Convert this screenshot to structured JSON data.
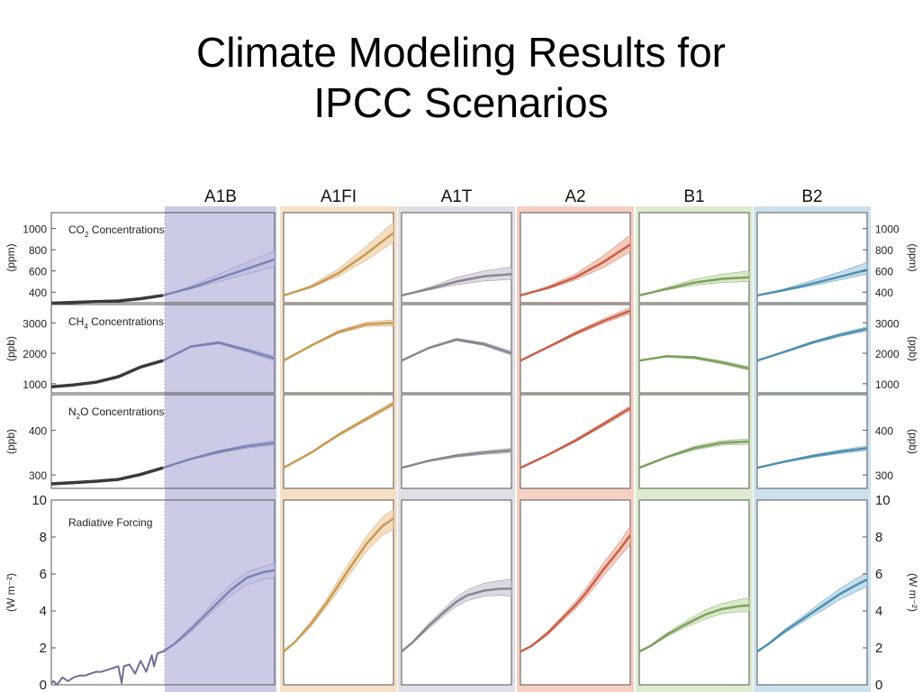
{
  "title_lines": [
    "Climate Modeling Results for",
    "IPCC Scenarios"
  ],
  "colors": {
    "historical": "#3a3a3a",
    "A1B": "#7f80b5",
    "A1FI": "#c89a55",
    "A1T": "#8c8490",
    "A2": "#c8604a",
    "B1": "#7ea060",
    "B2": "#4f90b0",
    "A1B_band": "#c2c2e2",
    "A1FI_band": "#f4dcbe",
    "A1T_band": "#dcd8e2",
    "A2_band": "#f5c8b8",
    "B1_band": "#d8e8c8",
    "B2_band": "#c4dcea"
  },
  "chart_data": {
    "type": "line",
    "scenarios": [
      "A1B",
      "A1FI",
      "A1T",
      "A2",
      "B1",
      "B2"
    ],
    "x_range": [
      1900,
      2100
    ],
    "panels": [
      {
        "key": "co2",
        "label_main": "CO",
        "label_sub": "2",
        "label_rest": " Concentrations",
        "ylabel": "(ppm)",
        "ylim": [
          300,
          1150
        ],
        "yticks": [
          "400",
          "600",
          "800",
          "1000"
        ],
        "ytick_values": [
          400,
          600,
          800,
          1000
        ],
        "historical": {
          "x": [
            1900,
            1920,
            1940,
            1960,
            1980,
            2000
          ],
          "y": [
            296,
            303,
            310,
            317,
            338,
            370
          ]
        },
        "series": [
          {
            "scenario": "A1B",
            "x": [
              2000,
              2025,
              2050,
              2075,
              2100
            ],
            "y": [
              370,
              440,
              530,
              620,
              710
            ],
            "lo": [
              370,
              430,
              500,
              570,
              640
            ],
            "hi": [
              370,
              455,
              570,
              680,
              790
            ]
          },
          {
            "scenario": "A1FI",
            "x": [
              2000,
              2025,
              2050,
              2075,
              2100
            ],
            "y": [
              370,
              450,
              580,
              760,
              960
            ],
            "lo": [
              370,
              440,
              550,
              700,
              870
            ],
            "hi": [
              370,
              465,
              620,
              830,
              1060
            ]
          },
          {
            "scenario": "A1T",
            "x": [
              2000,
              2025,
              2050,
              2075,
              2100
            ],
            "y": [
              370,
              430,
              500,
              550,
              570
            ],
            "lo": [
              370,
              420,
              470,
              505,
              520
            ],
            "hi": [
              370,
              445,
              540,
              600,
              640
            ]
          },
          {
            "scenario": "A2",
            "x": [
              2000,
              2025,
              2050,
              2075,
              2100
            ],
            "y": [
              370,
              440,
              540,
              680,
              850
            ],
            "lo": [
              370,
              430,
              515,
              630,
              780
            ],
            "hi": [
              370,
              455,
              570,
              740,
              940
            ]
          },
          {
            "scenario": "B1",
            "x": [
              2000,
              2025,
              2050,
              2075,
              2100
            ],
            "y": [
              370,
              430,
              490,
              525,
              540
            ],
            "lo": [
              370,
              420,
              465,
              490,
              500
            ],
            "hi": [
              370,
              445,
              520,
              570,
              600
            ]
          },
          {
            "scenario": "B2",
            "x": [
              2000,
              2025,
              2050,
              2075,
              2100
            ],
            "y": [
              370,
              420,
              480,
              545,
              610
            ],
            "lo": [
              370,
              412,
              460,
              515,
              570
            ],
            "hi": [
              370,
              432,
              510,
              590,
              680
            ]
          }
        ]
      },
      {
        "key": "ch4",
        "label_main": "CH",
        "label_sub": "4",
        "label_rest": " Concentrations",
        "ylabel": "(ppb)",
        "ylim": [
          700,
          3600
        ],
        "yticks": [
          "1000",
          "2000",
          "3000"
        ],
        "ytick_values": [
          1000,
          2000,
          3000
        ],
        "historical": {
          "x": [
            1900,
            1920,
            1940,
            1960,
            1980,
            2000
          ],
          "y": [
            900,
            960,
            1050,
            1230,
            1550,
            1760
          ]
        },
        "series": [
          {
            "scenario": "A1B",
            "x": [
              2000,
              2025,
              2050,
              2075,
              2100
            ],
            "y": [
              1760,
              2220,
              2350,
              2100,
              1830
            ],
            "lo": [
              1760,
              2190,
              2310,
              2050,
              1750
            ],
            "hi": [
              1760,
              2250,
              2390,
              2150,
              1910
            ]
          },
          {
            "scenario": "A1FI",
            "x": [
              2000,
              2025,
              2050,
              2075,
              2100
            ],
            "y": [
              1760,
              2250,
              2700,
              2950,
              3000
            ],
            "lo": [
              1760,
              2220,
              2650,
              2880,
              2900
            ],
            "hi": [
              1760,
              2280,
              2750,
              3020,
              3100
            ]
          },
          {
            "scenario": "A1T",
            "x": [
              2000,
              2025,
              2050,
              2075,
              2100
            ],
            "y": [
              1760,
              2180,
              2450,
              2300,
              2000
            ],
            "lo": [
              1760,
              2150,
              2410,
              2250,
              1930
            ],
            "hi": [
              1760,
              2210,
              2490,
              2350,
              2070
            ]
          },
          {
            "scenario": "A2",
            "x": [
              2000,
              2025,
              2050,
              2075,
              2100
            ],
            "y": [
              1760,
              2200,
              2650,
              3050,
              3400
            ],
            "lo": [
              1760,
              2170,
              2600,
              2980,
              3300
            ],
            "hi": [
              1760,
              2230,
              2700,
              3120,
              3500
            ]
          },
          {
            "scenario": "B1",
            "x": [
              2000,
              2025,
              2050,
              2075,
              2100
            ],
            "y": [
              1760,
              1900,
              1860,
              1700,
              1500
            ],
            "lo": [
              1760,
              1870,
              1820,
              1650,
              1440
            ],
            "hi": [
              1760,
              1930,
              1900,
              1750,
              1560
            ]
          },
          {
            "scenario": "B2",
            "x": [
              2000,
              2025,
              2050,
              2075,
              2100
            ],
            "y": [
              1760,
              2050,
              2350,
              2600,
              2800
            ],
            "lo": [
              1760,
              2020,
              2310,
              2550,
              2730
            ],
            "hi": [
              1760,
              2080,
              2390,
              2650,
              2870
            ]
          }
        ]
      },
      {
        "key": "n2o",
        "label_main": "N",
        "label_sub": "2",
        "label_rest": "O Concentrations",
        "ylabel": "(ppb)",
        "ylim": [
          270,
          480
        ],
        "yticks": [
          "300",
          "400"
        ],
        "ytick_values": [
          300,
          400
        ],
        "historical": {
          "x": [
            1900,
            1920,
            1940,
            1960,
            1980,
            2000
          ],
          "y": [
            280,
            283,
            286,
            290,
            301,
            316
          ]
        },
        "series": [
          {
            "scenario": "A1B",
            "x": [
              2000,
              2025,
              2050,
              2075,
              2100
            ],
            "y": [
              316,
              336,
              352,
              364,
              372
            ],
            "lo": [
              316,
              334,
              349,
              360,
              367
            ],
            "hi": [
              316,
              338,
              355,
              368,
              377
            ]
          },
          {
            "scenario": "A1FI",
            "x": [
              2000,
              2025,
              2050,
              2075,
              2100
            ],
            "y": [
              316,
              350,
              390,
              425,
              460
            ],
            "lo": [
              316,
              348,
              387,
              421,
              455
            ],
            "hi": [
              316,
              352,
              393,
              429,
              465
            ]
          },
          {
            "scenario": "A1T",
            "x": [
              2000,
              2025,
              2050,
              2075,
              2100
            ],
            "y": [
              316,
              332,
              343,
              350,
              355
            ],
            "lo": [
              316,
              330,
              340,
              346,
              350
            ],
            "hi": [
              316,
              334,
              346,
              354,
              360
            ]
          },
          {
            "scenario": "A2",
            "x": [
              2000,
              2025,
              2050,
              2075,
              2100
            ],
            "y": [
              316,
              345,
              377,
              413,
              450
            ],
            "lo": [
              316,
              343,
              374,
              409,
              445
            ],
            "hi": [
              316,
              347,
              380,
              417,
              455
            ]
          },
          {
            "scenario": "B1",
            "x": [
              2000,
              2025,
              2050,
              2075,
              2100
            ],
            "y": [
              316,
              340,
              360,
              372,
              375
            ],
            "lo": [
              316,
              338,
              356,
              367,
              369
            ],
            "hi": [
              316,
              342,
              364,
              377,
              381
            ]
          },
          {
            "scenario": "B2",
            "x": [
              2000,
              2025,
              2050,
              2075,
              2100
            ],
            "y": [
              316,
              330,
              342,
              352,
              360
            ],
            "lo": [
              316,
              328,
              339,
              348,
              355
            ],
            "hi": [
              316,
              332,
              345,
              356,
              365
            ]
          }
        ]
      },
      {
        "key": "rf",
        "label_main": "Radiative Forcing",
        "label_sub": "",
        "label_rest": "",
        "ylabel": "(W m⁻²)",
        "ylim": [
          0,
          10
        ],
        "yticks": [
          "0",
          "2",
          "4",
          "6",
          "8",
          "10"
        ],
        "ytick_values": [
          0,
          2,
          4,
          6,
          8,
          10
        ],
        "historical": {
          "x": [
            1900,
            1902,
            1905,
            1910,
            1915,
            1920,
            1925,
            1930,
            1935,
            1940,
            1945,
            1950,
            1955,
            1960,
            1963,
            1965,
            1970,
            1975,
            1980,
            1985,
            1990,
            1992,
            1995,
            2000
          ],
          "y": [
            0.1,
            0.2,
            0.0,
            0.4,
            0.2,
            0.4,
            0.5,
            0.5,
            0.6,
            0.7,
            0.7,
            0.8,
            0.9,
            1.0,
            0.1,
            1.0,
            1.1,
            0.6,
            1.3,
            0.7,
            1.6,
            1.0,
            1.7,
            1.8
          ]
        },
        "series": [
          {
            "scenario": "A1B",
            "x": [
              2000,
              2010,
              2025,
              2040,
              2050,
              2060,
              2075,
              2090,
              2100
            ],
            "y": [
              1.8,
              2.2,
              3.0,
              3.9,
              4.5,
              5.1,
              5.8,
              6.1,
              6.2
            ],
            "lo": [
              1.8,
              2.15,
              2.85,
              3.7,
              4.25,
              4.8,
              5.4,
              5.7,
              5.8
            ],
            "hi": [
              1.8,
              2.25,
              3.15,
              4.1,
              4.8,
              5.4,
              6.1,
              6.4,
              6.6
            ]
          },
          {
            "scenario": "A1FI",
            "x": [
              2000,
              2010,
              2025,
              2040,
              2050,
              2060,
              2075,
              2090,
              2100
            ],
            "y": [
              1.8,
              2.3,
              3.3,
              4.5,
              5.4,
              6.3,
              7.6,
              8.6,
              9.0
            ],
            "lo": [
              1.8,
              2.25,
              3.15,
              4.3,
              5.1,
              5.95,
              7.2,
              8.1,
              8.4
            ],
            "hi": [
              1.8,
              2.35,
              3.45,
              4.7,
              5.7,
              6.65,
              8.0,
              9.1,
              9.5
            ]
          },
          {
            "scenario": "A1T",
            "x": [
              2000,
              2010,
              2025,
              2040,
              2050,
              2060,
              2075,
              2090,
              2100
            ],
            "y": [
              1.8,
              2.3,
              3.2,
              4.0,
              4.5,
              4.85,
              5.1,
              5.2,
              5.2
            ],
            "lo": [
              1.8,
              2.25,
              3.05,
              3.8,
              4.25,
              4.55,
              4.8,
              4.85,
              4.8
            ],
            "hi": [
              1.8,
              2.35,
              3.35,
              4.2,
              4.75,
              5.15,
              5.5,
              5.65,
              5.7
            ]
          },
          {
            "scenario": "A2",
            "x": [
              2000,
              2010,
              2025,
              2040,
              2050,
              2060,
              2075,
              2090,
              2100
            ],
            "y": [
              1.8,
              2.1,
              2.8,
              3.7,
              4.3,
              5.0,
              6.2,
              7.3,
              8.1
            ],
            "lo": [
              1.8,
              2.05,
              2.7,
              3.55,
              4.1,
              4.75,
              5.85,
              6.9,
              7.6
            ],
            "hi": [
              1.8,
              2.15,
              2.9,
              3.85,
              4.5,
              5.25,
              6.55,
              7.7,
              8.6
            ]
          },
          {
            "scenario": "B1",
            "x": [
              2000,
              2010,
              2025,
              2040,
              2050,
              2060,
              2075,
              2090,
              2100
            ],
            "y": [
              1.8,
              2.1,
              2.7,
              3.2,
              3.5,
              3.8,
              4.1,
              4.25,
              4.3
            ],
            "lo": [
              1.8,
              2.05,
              2.6,
              3.05,
              3.3,
              3.55,
              3.85,
              3.95,
              3.95
            ],
            "hi": [
              1.8,
              2.15,
              2.8,
              3.35,
              3.7,
              4.05,
              4.4,
              4.6,
              4.7
            ]
          },
          {
            "scenario": "B2",
            "x": [
              2000,
              2010,
              2025,
              2040,
              2050,
              2060,
              2075,
              2090,
              2100
            ],
            "y": [
              1.8,
              2.2,
              2.9,
              3.5,
              3.9,
              4.3,
              4.9,
              5.4,
              5.7
            ],
            "lo": [
              1.8,
              2.15,
              2.8,
              3.35,
              3.7,
              4.05,
              4.6,
              5.05,
              5.3
            ],
            "hi": [
              1.8,
              2.25,
              3.0,
              3.65,
              4.1,
              4.55,
              5.2,
              5.75,
              6.1
            ]
          }
        ]
      }
    ]
  }
}
